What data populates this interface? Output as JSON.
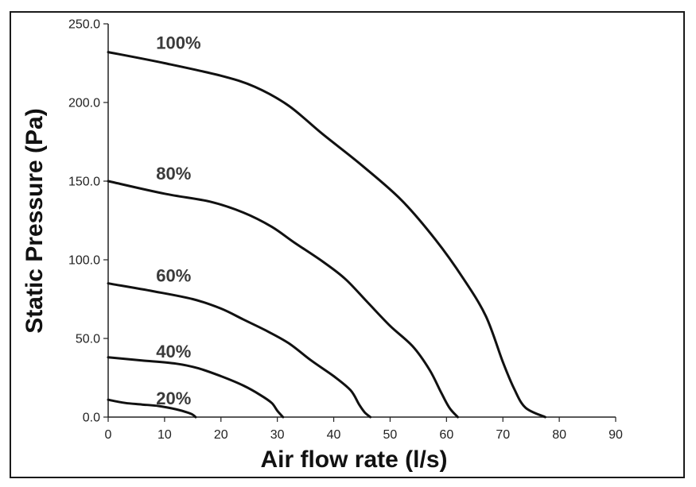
{
  "chart_data": {
    "type": "line",
    "title": "",
    "xlabel": "Air flow rate (l/s)",
    "ylabel": "Static Pressure (Pa)",
    "xlim": [
      0,
      90
    ],
    "ylim": [
      0,
      250
    ],
    "x_ticks": [
      "0",
      "10",
      "20",
      "30",
      "40",
      "50",
      "60",
      "70",
      "80",
      "90"
    ],
    "y_ticks": [
      "0.0",
      "50.0",
      "100.0",
      "150.0",
      "200.0",
      "250.0"
    ],
    "x_tick_values": [
      0,
      10,
      20,
      30,
      40,
      50,
      60,
      70,
      80,
      90
    ],
    "y_tick_values": [
      0,
      50,
      100,
      150,
      200,
      250
    ],
    "grid": false,
    "colors": {
      "line": "#111111",
      "axis": "#222222",
      "label": "#3a3a3a"
    },
    "series": [
      {
        "name": "100%",
        "label_at": [
          8.5,
          234
        ],
        "points": [
          [
            0,
            232
          ],
          [
            10,
            225
          ],
          [
            20,
            217
          ],
          [
            26,
            210
          ],
          [
            32,
            198
          ],
          [
            38,
            180
          ],
          [
            45,
            160
          ],
          [
            52,
            138
          ],
          [
            58,
            113
          ],
          [
            63,
            88
          ],
          [
            67,
            64
          ],
          [
            70,
            35
          ],
          [
            72,
            18
          ],
          [
            74,
            6
          ],
          [
            77.5,
            0
          ]
        ]
      },
      {
        "name": "80%",
        "label_at": [
          8.5,
          151
        ],
        "points": [
          [
            0,
            150
          ],
          [
            10,
            142
          ],
          [
            18,
            137
          ],
          [
            24,
            130
          ],
          [
            29,
            121
          ],
          [
            33,
            111
          ],
          [
            38,
            99
          ],
          [
            42,
            88
          ],
          [
            46,
            73
          ],
          [
            50,
            58
          ],
          [
            54,
            45
          ],
          [
            57,
            30
          ],
          [
            59,
            16
          ],
          [
            60.5,
            6
          ],
          [
            62,
            0
          ]
        ]
      },
      {
        "name": "60%",
        "label_at": [
          8.5,
          86
        ],
        "points": [
          [
            0,
            85
          ],
          [
            8,
            80
          ],
          [
            15,
            75
          ],
          [
            20,
            69
          ],
          [
            24,
            62
          ],
          [
            28,
            55
          ],
          [
            32,
            47
          ],
          [
            36,
            36
          ],
          [
            40,
            26
          ],
          [
            43,
            17
          ],
          [
            44.5,
            8
          ],
          [
            45.5,
            3
          ],
          [
            46.5,
            0
          ]
        ]
      },
      {
        "name": "40%",
        "label_at": [
          8.5,
          38
        ],
        "points": [
          [
            0,
            38
          ],
          [
            6,
            36
          ],
          [
            12,
            34
          ],
          [
            16,
            31
          ],
          [
            20,
            26
          ],
          [
            24,
            20
          ],
          [
            27,
            14
          ],
          [
            29,
            9
          ],
          [
            30,
            4
          ],
          [
            31,
            0
          ]
        ]
      },
      {
        "name": "20%",
        "label_at": [
          8.5,
          8
        ],
        "points": [
          [
            0,
            11
          ],
          [
            3,
            9
          ],
          [
            6,
            8
          ],
          [
            9,
            7
          ],
          [
            12,
            5
          ],
          [
            14,
            3
          ],
          [
            15,
            1.5
          ],
          [
            15.5,
            0
          ]
        ]
      }
    ]
  }
}
